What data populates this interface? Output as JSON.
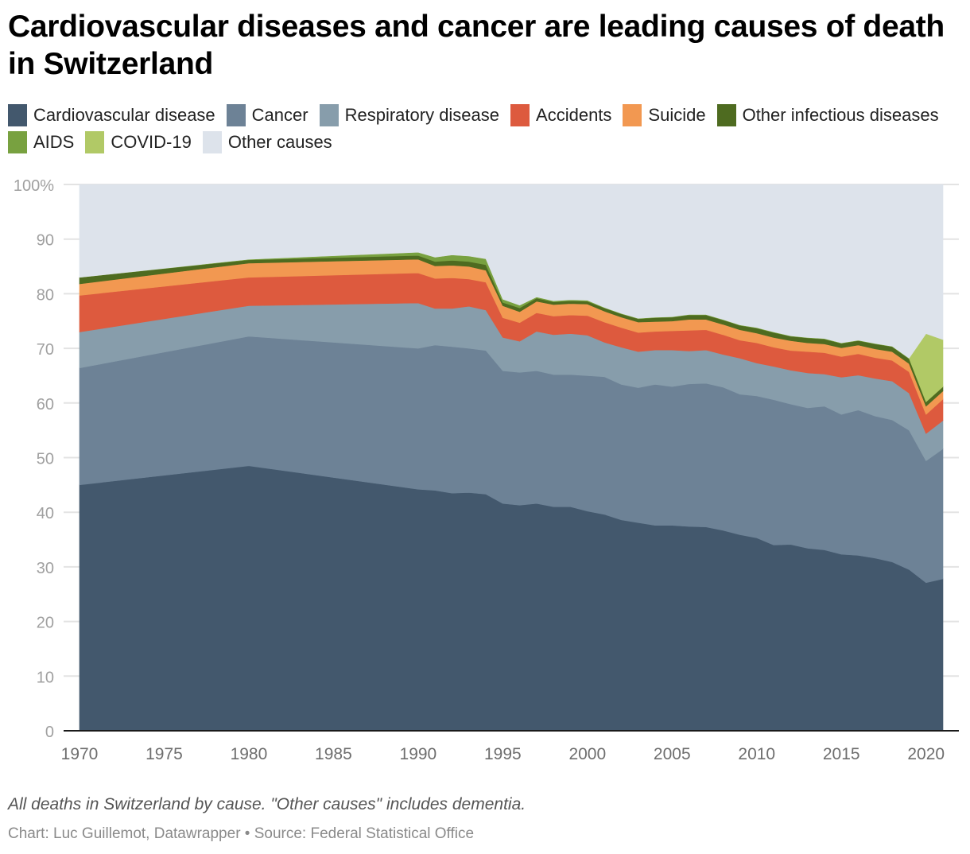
{
  "title": "Cardiovascular diseases and cancer are leading causes of death in Switzerland",
  "notes": "All deaths in Switzerland by cause. \"Other causes\" includes dementia.",
  "byline": "Chart: Luc Guillemot, Datawrapper • Source: Federal Statistical Office",
  "chart_data": {
    "type": "area",
    "stacked": true,
    "title": "Cardiovascular diseases and cancer are leading causes of death in Switzerland",
    "xlabel": "",
    "ylabel": "",
    "ylim": [
      0,
      100
    ],
    "y_ticks": [
      "0",
      "10",
      "20",
      "30",
      "40",
      "50",
      "60",
      "70",
      "80",
      "90",
      "100%"
    ],
    "x_ticks": [
      "1970",
      "1975",
      "1980",
      "1985",
      "1990",
      "1995",
      "2000",
      "2005",
      "2010",
      "2015",
      "2020"
    ],
    "grid": true,
    "legend_position": "top",
    "x": [
      1970,
      1980,
      1990,
      1991,
      1992,
      1993,
      1994,
      1995,
      1996,
      1997,
      1998,
      1999,
      2000,
      2001,
      2002,
      2003,
      2004,
      2005,
      2006,
      2007,
      2008,
      2009,
      2010,
      2011,
      2012,
      2013,
      2014,
      2015,
      2016,
      2017,
      2018,
      2019,
      2020,
      2021
    ],
    "series": [
      {
        "name": "Cardiovascular disease",
        "color": "#43586d",
        "values": [
          45.0,
          48.5,
          44.2,
          44.0,
          43.5,
          43.6,
          43.3,
          41.6,
          41.3,
          41.6,
          41.0,
          41.0,
          40.2,
          39.6,
          38.6,
          38.1,
          37.6,
          37.6,
          37.4,
          37.3,
          36.7,
          35.9,
          35.3,
          34.0,
          34.1,
          33.4,
          33.1,
          32.3,
          32.1,
          31.6,
          30.9,
          29.5,
          27.1,
          27.8
        ]
      },
      {
        "name": "Cancer",
        "color": "#6d8296",
        "values": [
          21.4,
          23.7,
          25.8,
          26.6,
          26.8,
          26.4,
          26.3,
          24.3,
          24.3,
          24.3,
          24.2,
          24.2,
          24.8,
          25.2,
          24.8,
          24.7,
          25.8,
          25.4,
          26.1,
          26.3,
          26.2,
          25.7,
          26.0,
          26.6,
          25.7,
          25.7,
          26.3,
          25.6,
          26.6,
          26.0,
          26.0,
          25.5,
          22.3,
          23.8
        ]
      },
      {
        "name": "Respiratory disease",
        "color": "#879dab",
        "values": [
          6.6,
          5.6,
          8.3,
          6.7,
          7.0,
          7.7,
          7.4,
          6.1,
          5.7,
          7.2,
          7.3,
          7.5,
          7.4,
          6.3,
          6.8,
          6.6,
          6.3,
          6.7,
          6.0,
          6.1,
          6.0,
          6.6,
          6.0,
          6.1,
          6.2,
          6.4,
          5.9,
          6.8,
          6.4,
          6.9,
          7.1,
          6.8,
          5.0,
          5.2
        ]
      },
      {
        "name": "Accidents",
        "color": "#dd5a3e",
        "values": [
          6.7,
          5.2,
          5.5,
          5.5,
          5.6,
          5.0,
          5.1,
          3.6,
          3.4,
          3.4,
          3.4,
          3.4,
          3.6,
          3.7,
          3.6,
          3.5,
          3.4,
          3.5,
          3.8,
          3.7,
          3.6,
          3.3,
          3.7,
          3.5,
          3.6,
          3.9,
          3.9,
          3.8,
          3.9,
          3.8,
          3.8,
          3.9,
          3.5,
          3.9
        ]
      },
      {
        "name": "Suicide",
        "color": "#f29851",
        "values": [
          2.1,
          2.6,
          2.5,
          2.3,
          2.3,
          2.3,
          2.2,
          2.2,
          2.0,
          2.1,
          2.1,
          2.1,
          2.1,
          2.0,
          1.9,
          1.9,
          1.8,
          1.8,
          2.0,
          1.9,
          1.9,
          1.9,
          1.8,
          1.8,
          1.8,
          1.6,
          1.6,
          1.6,
          1.6,
          1.6,
          1.6,
          1.5,
          1.5,
          1.5
        ]
      },
      {
        "name": "Other infectious diseases",
        "color": "#4e6b20",
        "values": [
          1.2,
          0.6,
          0.7,
          0.8,
          0.9,
          0.9,
          1.0,
          0.6,
          0.7,
          0.6,
          0.5,
          0.5,
          0.5,
          0.6,
          0.6,
          0.6,
          0.7,
          0.7,
          0.8,
          0.8,
          0.8,
          0.8,
          0.9,
          0.9,
          0.8,
          0.9,
          0.9,
          0.8,
          0.8,
          0.9,
          0.9,
          0.9,
          0.8,
          0.8
        ]
      },
      {
        "name": "AIDS",
        "color": "#78a140",
        "values": [
          0.0,
          0.1,
          0.6,
          0.8,
          1.0,
          1.0,
          1.1,
          0.6,
          0.5,
          0.2,
          0.2,
          0.2,
          0.2,
          0.1,
          0.1,
          0.1,
          0.1,
          0.1,
          0.1,
          0.1,
          0.1,
          0.1,
          0.1,
          0.1,
          0.1,
          0.1,
          0.1,
          0.1,
          0.1,
          0.1,
          0.1,
          0.1,
          0.0,
          0.0
        ]
      },
      {
        "name": "COVID-19",
        "color": "#b1c966",
        "values": [
          0,
          0,
          0,
          0,
          0,
          0,
          0,
          0,
          0,
          0,
          0,
          0,
          0,
          0,
          0,
          0,
          0,
          0,
          0,
          0,
          0,
          0,
          0,
          0,
          0,
          0,
          0,
          0,
          0,
          0,
          0,
          0,
          12.5,
          8.6
        ]
      },
      {
        "name": "Other causes",
        "color": "#dde3eb",
        "values": [
          17.0,
          13.7,
          12.4,
          13.3,
          12.9,
          13.1,
          13.6,
          21.0,
          22.1,
          20.6,
          21.3,
          21.1,
          21.2,
          22.5,
          23.6,
          24.5,
          24.3,
          24.2,
          23.8,
          23.8,
          24.7,
          25.7,
          26.2,
          27.0,
          27.7,
          28.0,
          28.2,
          29.0,
          28.5,
          29.1,
          29.6,
          31.8,
          27.3,
          28.4
        ]
      }
    ]
  }
}
